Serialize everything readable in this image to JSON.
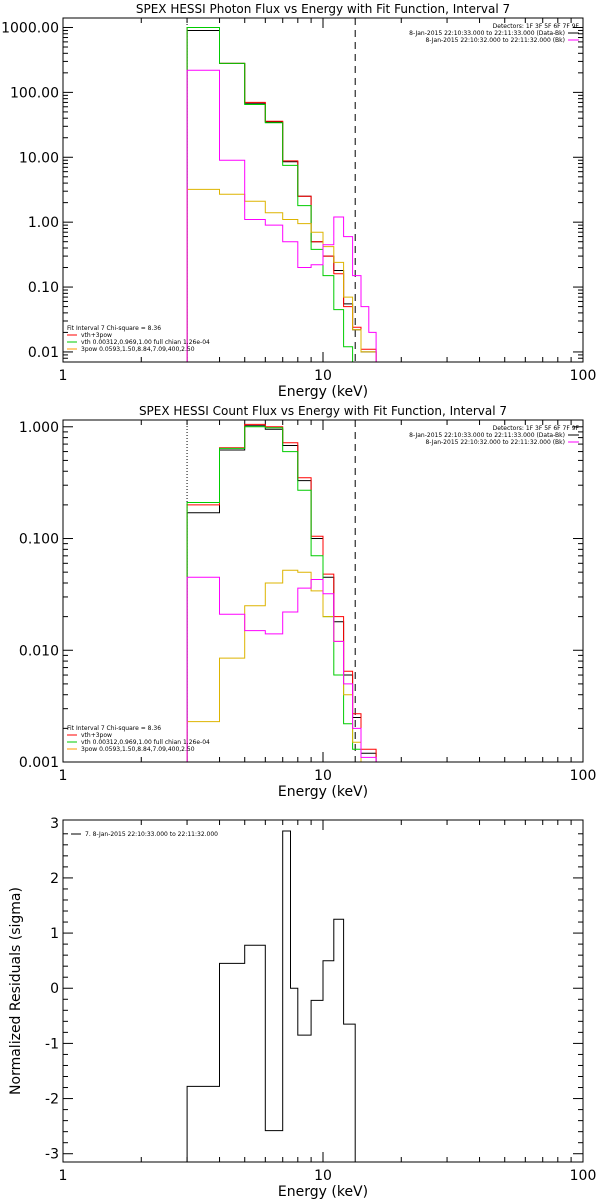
{
  "chart_data": [
    {
      "type": "line",
      "title": "SPEX HESSI Photon Flux vs Energy with Fit Function, Interval 7",
      "xlabel": "Energy (keV)",
      "ylabel": "",
      "xscale": "log",
      "yscale": "log",
      "xlim": [
        1,
        100
      ],
      "ylim": [
        0.007,
        1400
      ],
      "x_ticks": [
        "1",
        "10",
        "100"
      ],
      "y_ticks": [
        "0.01",
        "0.10",
        "1.00",
        "10.00",
        "100.00",
        "1000.00"
      ],
      "y_tick_values": [
        0.01,
        0.1,
        1,
        10,
        100,
        1000
      ],
      "energy_range_start": 3,
      "energy_range_end": 13.3,
      "bin_edges": [
        3,
        4,
        5,
        6,
        7,
        8,
        9,
        10,
        11,
        12,
        13,
        14,
        15,
        16
      ],
      "legend_top": {
        "header": "Detectors: 1F 3F 5F 6F 7F 9F",
        "items": [
          {
            "text": "8-Jan-2015 22:10:33.000 to 22:11:33.000 (Data-Bk)",
            "color": "#000000"
          },
          {
            "text": "8-Jan-2015 22:10:32.000 to 22:11:32.000 (Bk)",
            "color": "#ff00ff"
          }
        ]
      },
      "legend_bottom": {
        "header": "Fit Interval 7   Chi-square = 8.36",
        "items": [
          {
            "text": "vth+3pow",
            "color": "#ff0000"
          },
          {
            "text": "vth 0.00312,0.969,1.00   full chian 1.26e-04",
            "color": "#00cc00"
          },
          {
            "text": "3pow 0.0593,1.50,8.84,7.09,400,2.50",
            "color": "#ff9900"
          }
        ]
      },
      "series": [
        {
          "name": "Data-Bk",
          "color": "#000000",
          "values": [
            900,
            280,
            68,
            35,
            8.5,
            2.5,
            0.5,
            0.3,
            0.18,
            0.055,
            0.022,
            0.01,
            0.01
          ]
        },
        {
          "name": "vth+3pow",
          "color": "#ff0000",
          "values": [
            1000,
            280,
            70,
            36,
            8.8,
            2.5,
            0.5,
            0.3,
            0.16,
            0.05,
            0.024,
            0.011,
            0.011
          ]
        },
        {
          "name": "vth",
          "color": "#00cc00",
          "values": [
            1000,
            280,
            65,
            34,
            7.5,
            1.8,
            0.38,
            0.15,
            0.045,
            0.012,
            0.006,
            0.006,
            0.006
          ]
        },
        {
          "name": "3pow",
          "color": "#ddb400",
          "values": [
            3.2,
            2.7,
            2.1,
            1.4,
            1.1,
            0.95,
            0.7,
            0.42,
            0.24,
            0.07,
            0.022,
            0.01,
            0.01
          ]
        },
        {
          "name": "Bk",
          "color": "#ff00ff",
          "values": [
            220,
            9,
            1.1,
            0.9,
            0.5,
            0.2,
            0.22,
            0.45,
            1.2,
            0.6,
            0.15,
            0.05,
            0.02
          ]
        }
      ]
    },
    {
      "type": "line",
      "title": "SPEX HESSI Count Flux vs Energy with Fit Function, Interval 7",
      "xlabel": "Energy (keV)",
      "ylabel": "",
      "xscale": "log",
      "yscale": "log",
      "xlim": [
        1,
        100
      ],
      "ylim": [
        0.001,
        1.15
      ],
      "x_ticks": [
        "1",
        "10",
        "100"
      ],
      "y_ticks": [
        "0.001",
        "0.010",
        "0.100",
        "1.000"
      ],
      "y_tick_values": [
        0.001,
        0.01,
        0.1,
        1
      ],
      "energy_range_start": 3,
      "energy_range_end": 13.3,
      "bin_edges": [
        3,
        4,
        5,
        6,
        7,
        8,
        9,
        10,
        11,
        12,
        13,
        14,
        15,
        16
      ],
      "legend_top": {
        "header": "Detectors: 1F 3F 5F 6F 7F 9F",
        "items": [
          {
            "text": "8-Jan-2015 22:10:33.000 to 22:11:33.000 (Data-Bk)",
            "color": "#000000"
          },
          {
            "text": "8-Jan-2015 22:10:32.000 to 22:11:32.000 (Bk)",
            "color": "#ff00ff"
          }
        ]
      },
      "legend_bottom": {
        "header": "Fit Interval 7   Chi-square = 8.36",
        "items": [
          {
            "text": "vth+3pow",
            "color": "#ff0000"
          },
          {
            "text": "vth 0.00312,0.969,1.00   full chian 1.26e-04",
            "color": "#00cc00"
          },
          {
            "text": "3pow 0.0593,1.50,8.84,7.09,400,2.50",
            "color": "#ff9900"
          }
        ]
      },
      "series": [
        {
          "name": "Data-Bk",
          "color": "#000000",
          "values": [
            0.17,
            0.62,
            1.02,
            0.95,
            0.68,
            0.33,
            0.1,
            0.045,
            0.018,
            0.006,
            0.0025,
            0.0012,
            0.0012
          ]
        },
        {
          "name": "vth+3pow",
          "color": "#ff0000",
          "values": [
            0.2,
            0.65,
            1.05,
            1.0,
            0.72,
            0.35,
            0.105,
            0.048,
            0.02,
            0.0065,
            0.0027,
            0.0013,
            0.0013
          ]
        },
        {
          "name": "vth",
          "color": "#00cc00",
          "values": [
            0.21,
            0.64,
            1.0,
            0.98,
            0.6,
            0.27,
            0.07,
            0.02,
            0.006,
            0.0022,
            0.0013,
            0.0009,
            0.0009
          ]
        },
        {
          "name": "3pow",
          "color": "#ddb400",
          "values": [
            0.0023,
            0.0085,
            0.025,
            0.04,
            0.052,
            0.05,
            0.034,
            0.02,
            0.012,
            0.004,
            0.0015,
            0.0009,
            0.0009
          ]
        },
        {
          "name": "Bk",
          "color": "#ff00ff",
          "values": [
            0.045,
            0.021,
            0.015,
            0.014,
            0.022,
            0.036,
            0.043,
            0.032,
            0.012,
            0.005,
            0.002,
            0.0011,
            0.0011
          ]
        }
      ]
    },
    {
      "type": "line",
      "title": "",
      "xlabel": "Energy (keV)",
      "ylabel": "Normalized Residuals (sigma)",
      "xscale": "log",
      "yscale": "linear",
      "xlim": [
        1,
        100
      ],
      "ylim": [
        -3.15,
        3.05
      ],
      "x_ticks": [
        "1",
        "10",
        "100"
      ],
      "y_ticks": [
        "-3",
        "-2",
        "-1",
        "0",
        "1",
        "2",
        "3"
      ],
      "y_tick_values": [
        -3,
        -2,
        -1,
        0,
        1,
        2,
        3
      ],
      "legend": {
        "items": [
          {
            "text": "7.  8-Jan-2015 22:10:33.000 to 22:11:32.000",
            "color": "#000000"
          }
        ]
      },
      "bin_edges": [
        3,
        4,
        5,
        6,
        7,
        7.5,
        8,
        9,
        10,
        11,
        12,
        13.3
      ],
      "series": [
        {
          "name": "7",
          "color": "#000000",
          "values": [
            -1.78,
            0.45,
            0.78,
            -2.58,
            2.85,
            0.0,
            -0.85,
            -0.22,
            0.5,
            1.25,
            -0.65
          ]
        }
      ]
    }
  ]
}
